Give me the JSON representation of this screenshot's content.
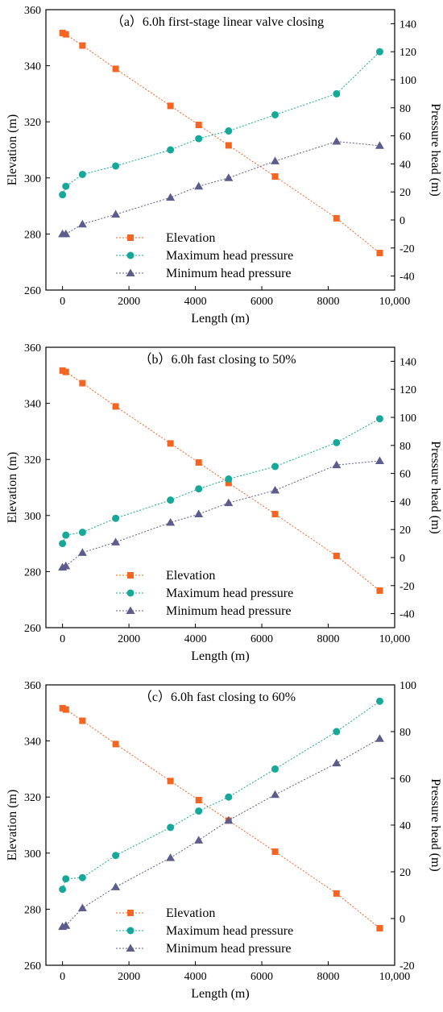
{
  "colors": {
    "elevation": "#f26522",
    "max_head": "#16a99b",
    "min_head": "#5c5d8c",
    "axis": "#000000"
  },
  "chart_data": [
    {
      "type": "line",
      "title": "（a）6.0h first-stage linear valve closing",
      "xlabel": "Length (m)",
      "ylabel_left": "Elevation (m)",
      "ylabel_right": "Pressure head (m)",
      "xlim": [
        -500,
        10000
      ],
      "x_ticks": [
        0,
        2000,
        4000,
        6000,
        8000,
        10000
      ],
      "x_tick_labels": [
        "0",
        "2000",
        "4000",
        "6000",
        "8000",
        "10,000"
      ],
      "ylim_left": [
        260,
        360
      ],
      "y_ticks_left": [
        260,
        280,
        300,
        320,
        340,
        360
      ],
      "ylim_right": [
        -50,
        150
      ],
      "y_ticks_right": [
        -40,
        -20,
        0,
        20,
        40,
        60,
        80,
        100,
        120,
        140
      ],
      "legend_position": "bottom-left",
      "series": [
        {
          "name": "Elevation",
          "axis": "left",
          "marker": "square",
          "color": "#f26522",
          "x": [
            0,
            100,
            600,
            1600,
            3250,
            4100,
            5000,
            6400,
            8250,
            9550
          ],
          "y": [
            351.7,
            351.2,
            347.2,
            338.9,
            325.7,
            318.9,
            311.6,
            300.5,
            285.6,
            273.2
          ]
        },
        {
          "name": "Maximum head pressure",
          "axis": "right",
          "marker": "circle",
          "color": "#16a99b",
          "x": [
            0,
            100,
            600,
            1600,
            3250,
            4100,
            5000,
            6400,
            8250,
            9550
          ],
          "y": [
            18,
            24,
            32.5,
            38.5,
            50,
            58,
            63.5,
            75,
            90,
            120
          ]
        },
        {
          "name": "Minimum head pressure",
          "axis": "right",
          "marker": "triangle",
          "color": "#5c5d8c",
          "x": [
            0,
            100,
            600,
            1600,
            3250,
            4100,
            5000,
            6400,
            8250,
            9550
          ],
          "y": [
            -10,
            -10,
            -3,
            4,
            16,
            24,
            30,
            42,
            56,
            53
          ]
        }
      ]
    },
    {
      "type": "line",
      "title": "（b）6.0h fast closing to 50%",
      "xlabel": "Length (m)",
      "ylabel_left": "Elevation (m)",
      "ylabel_right": "Pressure head (m)",
      "xlim": [
        -500,
        10000
      ],
      "x_ticks": [
        0,
        2000,
        4000,
        6000,
        8000,
        10000
      ],
      "x_tick_labels": [
        "0",
        "2000",
        "4000",
        "6000",
        "8000",
        "10,000"
      ],
      "ylim_left": [
        260,
        360
      ],
      "y_ticks_left": [
        260,
        280,
        300,
        320,
        340,
        360
      ],
      "ylim_right": [
        -50,
        150
      ],
      "y_ticks_right": [
        -40,
        -20,
        0,
        20,
        40,
        60,
        80,
        100,
        120,
        140
      ],
      "legend_position": "bottom-left",
      "series": [
        {
          "name": "Elevation",
          "axis": "left",
          "marker": "square",
          "color": "#f26522",
          "x": [
            0,
            100,
            600,
            1600,
            3250,
            4100,
            5000,
            6400,
            8250,
            9550
          ],
          "y": [
            351.7,
            351.2,
            347.2,
            338.9,
            325.7,
            318.9,
            311.6,
            300.5,
            285.6,
            273.2
          ]
        },
        {
          "name": "Maximum head pressure",
          "axis": "right",
          "marker": "circle",
          "color": "#16a99b",
          "x": [
            0,
            100,
            600,
            1600,
            3250,
            4100,
            5000,
            6400,
            8250,
            9550
          ],
          "y": [
            10,
            16,
            18,
            28,
            41,
            49,
            56,
            65,
            82,
            99
          ]
        },
        {
          "name": "Minimum head pressure",
          "axis": "right",
          "marker": "triangle",
          "color": "#5c5d8c",
          "x": [
            0,
            100,
            600,
            1600,
            3250,
            4100,
            5000,
            6400,
            8250,
            9550
          ],
          "y": [
            -7,
            -6,
            3.5,
            11,
            25,
            31,
            39,
            48,
            66,
            69
          ]
        }
      ]
    },
    {
      "type": "line",
      "title": "（c）6.0h fast closing to 60%",
      "xlabel": "Length (m)",
      "ylabel_left": "Elevation (m)",
      "ylabel_right": "Pressure head (m)",
      "xlim": [
        -500,
        10000
      ],
      "x_ticks": [
        0,
        2000,
        4000,
        6000,
        8000,
        10000
      ],
      "x_tick_labels": [
        "0",
        "2000",
        "4000",
        "6000",
        "8000",
        "10,000"
      ],
      "ylim_left": [
        260,
        360
      ],
      "y_ticks_left": [
        260,
        280,
        300,
        320,
        340,
        360
      ],
      "ylim_right": [
        -20,
        100
      ],
      "y_ticks_right": [
        -20,
        0,
        20,
        40,
        60,
        80,
        100
      ],
      "legend_position": "bottom-left",
      "series": [
        {
          "name": "Elevation",
          "axis": "left",
          "marker": "square",
          "color": "#f26522",
          "x": [
            0,
            100,
            600,
            1600,
            3250,
            4100,
            5000,
            6400,
            8250,
            9550
          ],
          "y": [
            351.7,
            351.2,
            347.2,
            338.9,
            325.7,
            318.9,
            311.6,
            300.5,
            285.6,
            273.2
          ]
        },
        {
          "name": "Maximum head pressure",
          "axis": "right",
          "marker": "circle",
          "color": "#16a99b",
          "x": [
            0,
            100,
            600,
            1600,
            3250,
            4100,
            5000,
            6400,
            8250,
            9550
          ],
          "y": [
            12.5,
            17,
            17.5,
            27,
            39,
            46,
            52,
            64,
            80,
            93
          ]
        },
        {
          "name": "Minimum head pressure",
          "axis": "right",
          "marker": "triangle",
          "color": "#5c5d8c",
          "x": [
            0,
            100,
            600,
            1600,
            3250,
            4100,
            5000,
            6400,
            8250,
            9550
          ],
          "y": [
            -3.5,
            -3,
            4.5,
            13.5,
            26,
            33.5,
            42,
            53,
            66.5,
            77
          ]
        }
      ]
    }
  ]
}
